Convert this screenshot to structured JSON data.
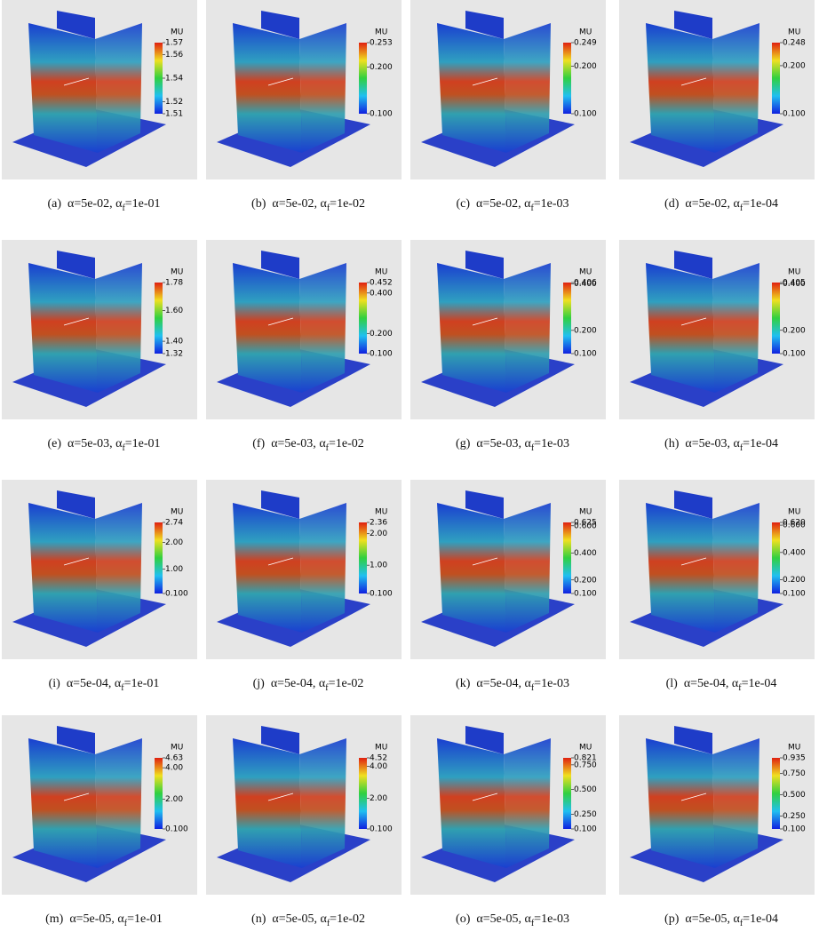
{
  "panels": [
    {
      "caption": [
        "(a)",
        "α=5e-02,",
        "α",
        "f",
        "=1e-01"
      ],
      "colorbar": {
        "title": "MU",
        "ticks": [
          "1.57",
          "1.56",
          "1.54",
          "1.52",
          "1.51"
        ]
      }
    },
    {
      "caption": [
        "(b)",
        "α=5e-02,",
        "α",
        "f",
        "=1e-02"
      ],
      "colorbar": {
        "title": "MU",
        "ticks": [
          "0.253",
          "0.200",
          "0.100"
        ]
      }
    },
    {
      "caption": [
        "(c)",
        "α=5e-02,",
        "α",
        "f",
        "=1e-03"
      ],
      "colorbar": {
        "title": "MU",
        "ticks": [
          "0.249",
          "0.200",
          "0.100"
        ]
      }
    },
    {
      "caption": [
        "(d)",
        "α=5e-02,",
        "α",
        "f",
        "=1e-04"
      ],
      "colorbar": {
        "title": "MU",
        "ticks": [
          "0.248",
          "0.200",
          "0.100"
        ]
      }
    },
    {
      "caption": [
        "(e)",
        "α=5e-03,",
        "α",
        "f",
        "=1e-01"
      ],
      "colorbar": {
        "title": "MU",
        "ticks": [
          "1.78",
          "1.60",
          "1.40",
          "1.32"
        ]
      }
    },
    {
      "caption": [
        "(f)",
        "α=5e-03,",
        "α",
        "f",
        "=1e-02"
      ],
      "colorbar": {
        "title": "MU",
        "ticks": [
          "0.452",
          "0.400",
          "0.200",
          "0.100"
        ]
      }
    },
    {
      "caption": [
        "(g)",
        "α=5e-03,",
        "α",
        "f",
        "=1e-03"
      ],
      "colorbar": {
        "title": "MU",
        "ticks": [
          "0.406",
          "0.400",
          "0.200",
          "0.100"
        ]
      }
    },
    {
      "caption": [
        "(h)",
        "α=5e-03,",
        "α",
        "f",
        "=1e-04"
      ],
      "colorbar": {
        "title": "MU",
        "ticks": [
          "0.405",
          "0.400",
          "0.200",
          "0.100"
        ]
      }
    },
    {
      "caption": [
        "(i)",
        "α=5e-04,",
        "α",
        "f",
        "=1e-01"
      ],
      "colorbar": {
        "title": "MU",
        "ticks": [
          "2.74",
          "2.00",
          "1.00",
          "0.100"
        ]
      }
    },
    {
      "caption": [
        "(j)",
        "α=5e-04,",
        "α",
        "f",
        "=1e-02"
      ],
      "colorbar": {
        "title": "MU",
        "ticks": [
          "2.36",
          "2.00",
          "1.00",
          "0.100"
        ]
      }
    },
    {
      "caption": [
        "(k)",
        "α=5e-04,",
        "α",
        "f",
        "=1e-03"
      ],
      "colorbar": {
        "title": "MU",
        "ticks": [
          "0.625",
          "0.600",
          "0.400",
          "0.200",
          "0.100"
        ]
      }
    },
    {
      "caption": [
        "(l)",
        "α=5e-04,",
        "α",
        "f",
        "=1e-04"
      ],
      "colorbar": {
        "title": "MU",
        "ticks": [
          "0.620",
          "0.600",
          "0.400",
          "0.200",
          "0.100"
        ]
      }
    },
    {
      "caption": [
        "(m)",
        "α=5e-05,",
        "α",
        "f",
        "=1e-01"
      ],
      "colorbar": {
        "title": "MU",
        "ticks": [
          "4.63",
          "4.00",
          "2.00",
          "0.100"
        ]
      }
    },
    {
      "caption": [
        "(n)",
        "α=5e-05,",
        "α",
        "f",
        "=1e-02"
      ],
      "colorbar": {
        "title": "MU",
        "ticks": [
          "4.52",
          "4.00",
          "2.00",
          "0.100"
        ]
      }
    },
    {
      "caption": [
        "(o)",
        "α=5e-05,",
        "α",
        "f",
        "=1e-03"
      ],
      "colorbar": {
        "title": "MU",
        "ticks": [
          "0.821",
          "0.750",
          "0.500",
          "0.250",
          "0.100"
        ]
      }
    },
    {
      "caption": [
        "(p)",
        "α=5e-05,",
        "α",
        "f",
        "=1e-04"
      ],
      "colorbar": {
        "title": "MU",
        "ticks": [
          "0.935",
          "0.750",
          "0.500",
          "0.250",
          "0.100"
        ]
      }
    }
  ]
}
